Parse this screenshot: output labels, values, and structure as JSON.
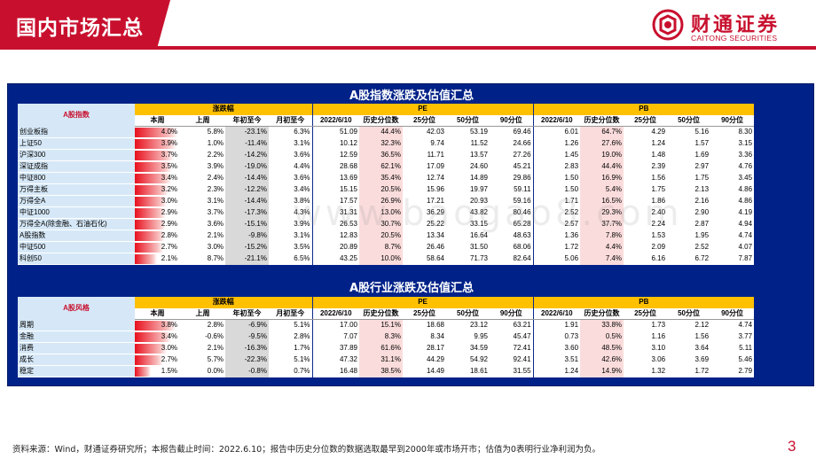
{
  "header": {
    "title": "国内市场汇总",
    "logo_cn": "财通证券",
    "logo_en": "CAITONG SECURITIES"
  },
  "colors": {
    "brand_red": "#c8102e",
    "panel_blue": "#002288",
    "group_header": "#ffc000",
    "label_bg": "#d6e8f7"
  },
  "section1": {
    "title": "A股指数涨跌及估值汇总",
    "category_label": "A股指数",
    "groups": {
      "change": "涨跌幅",
      "pe": "PE",
      "pb": "PB"
    },
    "subheaders": [
      "本周",
      "上周",
      "年初至今",
      "月初至今",
      "2022/6/10",
      "历史分位数",
      "25分位",
      "50分位",
      "90分位",
      "2022/6/10",
      "历史分位数",
      "25分位",
      "50分位",
      "90分位"
    ],
    "rows": [
      {
        "name": "创业板指",
        "bar": 4.0,
        "vals": [
          "4.0%",
          "5.8%",
          "-23.1%",
          "6.3%",
          "51.09",
          "44.4%",
          "42.03",
          "53.19",
          "69.46",
          "6.01",
          "64.7%",
          "4.29",
          "5.16",
          "8.30"
        ]
      },
      {
        "name": "上证50",
        "bar": 3.9,
        "vals": [
          "3.9%",
          "1.0%",
          "-11.4%",
          "3.1%",
          "10.12",
          "32.3%",
          "9.74",
          "11.52",
          "24.66",
          "1.26",
          "27.6%",
          "1.24",
          "1.57",
          "3.15"
        ]
      },
      {
        "name": "沪深300",
        "bar": 3.7,
        "vals": [
          "3.7%",
          "2.2%",
          "-14.2%",
          "3.6%",
          "12.59",
          "36.5%",
          "11.71",
          "13.57",
          "27.26",
          "1.45",
          "19.0%",
          "1.48",
          "1.69",
          "3.36"
        ]
      },
      {
        "name": "深证成指",
        "bar": 3.5,
        "vals": [
          "3.5%",
          "3.9%",
          "-19.0%",
          "4.4%",
          "28.68",
          "62.1%",
          "17.09",
          "24.60",
          "45.21",
          "2.83",
          "44.4%",
          "2.39",
          "2.97",
          "4.76"
        ]
      },
      {
        "name": "中证800",
        "bar": 3.4,
        "vals": [
          "3.4%",
          "2.4%",
          "-14.4%",
          "3.6%",
          "13.69",
          "35.4%",
          "12.74",
          "14.89",
          "29.86",
          "1.50",
          "16.9%",
          "1.56",
          "1.75",
          "3.45"
        ]
      },
      {
        "name": "万得主板",
        "bar": 3.2,
        "vals": [
          "3.2%",
          "2.3%",
          "-12.2%",
          "3.4%",
          "15.15",
          "20.5%",
          "15.96",
          "19.97",
          "59.11",
          "1.50",
          "5.4%",
          "1.75",
          "2.13",
          "4.86"
        ]
      },
      {
        "name": "万得全A",
        "bar": 3.0,
        "vals": [
          "3.0%",
          "3.1%",
          "-14.4%",
          "3.8%",
          "17.57",
          "26.9%",
          "17.21",
          "20.93",
          "59.16",
          "1.71",
          "16.5%",
          "1.86",
          "2.16",
          "4.86"
        ]
      },
      {
        "name": "中证1000",
        "bar": 2.9,
        "vals": [
          "2.9%",
          "3.7%",
          "-17.3%",
          "4.3%",
          "31.31",
          "13.0%",
          "36.29",
          "43.82",
          "80.46",
          "2.52",
          "29.3%",
          "2.40",
          "2.90",
          "4.19"
        ]
      },
      {
        "name": "万得全A(除金融、石油石化)",
        "bar": 2.9,
        "vals": [
          "2.9%",
          "3.6%",
          "-15.1%",
          "3.9%",
          "26.53",
          "30.7%",
          "25.22",
          "33.15",
          "65.28",
          "2.57",
          "37.7%",
          "2.24",
          "2.87",
          "4.94"
        ]
      },
      {
        "name": "A股指数",
        "bar": 2.8,
        "vals": [
          "2.8%",
          "2.1%",
          "-9.8%",
          "3.1%",
          "12.83",
          "20.5%",
          "13.34",
          "16.64",
          "48.63",
          "1.36",
          "7.8%",
          "1.53",
          "1.95",
          "4.74"
        ]
      },
      {
        "name": "中证500",
        "bar": 2.7,
        "vals": [
          "2.7%",
          "3.0%",
          "-15.2%",
          "3.5%",
          "20.89",
          "8.7%",
          "26.46",
          "31.50",
          "68.06",
          "1.72",
          "4.4%",
          "2.09",
          "2.52",
          "4.07"
        ]
      },
      {
        "name": "科创50",
        "bar": 2.1,
        "vals": [
          "2.1%",
          "8.7%",
          "-21.1%",
          "6.5%",
          "43.25",
          "10.0%",
          "58.64",
          "71.73",
          "82.64",
          "5.06",
          "7.4%",
          "6.16",
          "6.72",
          "7.87"
        ]
      }
    ]
  },
  "section2": {
    "title": "A股行业涨跌及估值汇总",
    "category_label": "A股风格",
    "groups": {
      "change": "涨跌幅",
      "pe": "PE",
      "pb": "PB"
    },
    "subheaders": [
      "本周",
      "上周",
      "年初至今",
      "月初至今",
      "2022/6/10",
      "历史分位数",
      "25分位",
      "50分位",
      "90分位",
      "2022/6/10",
      "历史分位数",
      "25分位",
      "50分位",
      "90分位"
    ],
    "rows": [
      {
        "name": "周期",
        "bar": 3.8,
        "vals": [
          "3.8%",
          "2.8%",
          "-6.9%",
          "5.1%",
          "17.00",
          "15.1%",
          "18.68",
          "23.12",
          "63.21",
          "1.91",
          "33.8%",
          "1.73",
          "2.12",
          "4.74"
        ]
      },
      {
        "name": "金融",
        "bar": 3.4,
        "vals": [
          "3.4%",
          "-0.6%",
          "-9.5%",
          "2.8%",
          "7.07",
          "8.3%",
          "8.34",
          "9.95",
          "45.47",
          "0.73",
          "0.5%",
          "1.16",
          "1.56",
          "3.77"
        ]
      },
      {
        "name": "消费",
        "bar": 3.0,
        "vals": [
          "3.0%",
          "2.1%",
          "-16.3%",
          "1.7%",
          "37.89",
          "61.6%",
          "28.17",
          "34.59",
          "72.41",
          "3.60",
          "48.5%",
          "3.10",
          "3.64",
          "5.11"
        ]
      },
      {
        "name": "成长",
        "bar": 2.7,
        "vals": [
          "2.7%",
          "5.7%",
          "-22.3%",
          "5.1%",
          "47.32",
          "31.1%",
          "44.29",
          "54.92",
          "92.41",
          "3.51",
          "42.6%",
          "3.06",
          "3.69",
          "5.46"
        ]
      },
      {
        "name": "稳定",
        "bar": 1.5,
        "vals": [
          "1.5%",
          "0.0%",
          "-0.8%",
          "0.7%",
          "16.48",
          "38.5%",
          "14.49",
          "18.61",
          "31.55",
          "1.24",
          "14.9%",
          "1.32",
          "1.72",
          "2.79"
        ]
      }
    ]
  },
  "watermark": "www.baogao8.com",
  "footer": "资料来源：Wind，财通证券研究所；本报告截止时间：2022.6.10；报告中历史分位数的数据选取最早到2000年或市场开市；估值为0表明行业净利润为负。",
  "page_number": "3"
}
